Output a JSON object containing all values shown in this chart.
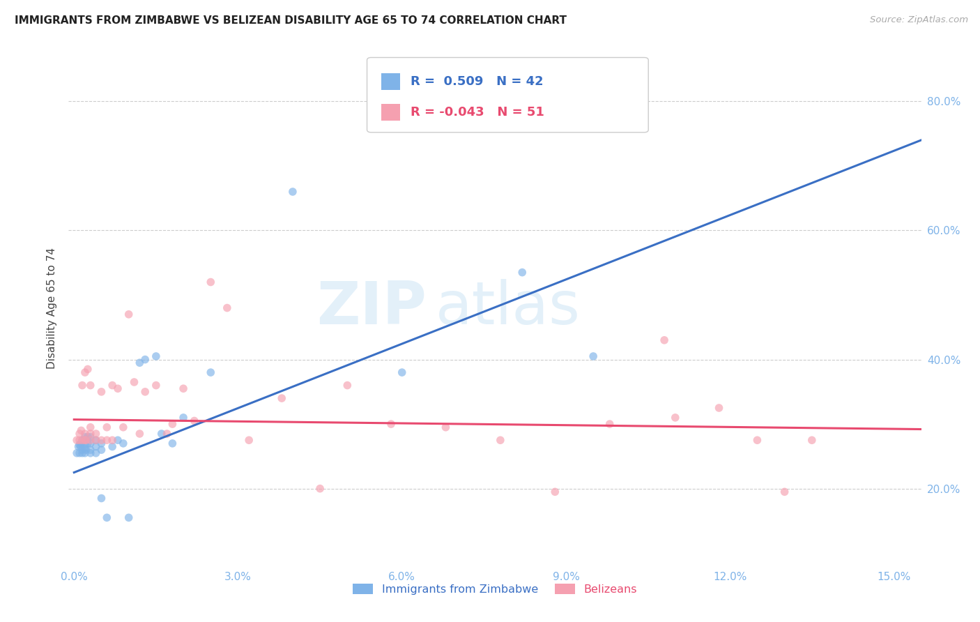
{
  "title": "IMMIGRANTS FROM ZIMBABWE VS BELIZEAN DISABILITY AGE 65 TO 74 CORRELATION CHART",
  "source": "Source: ZipAtlas.com",
  "ylabel": "Disability Age 65 to 74",
  "xlabel_ticks": [
    "0.0%",
    "3.0%",
    "6.0%",
    "9.0%",
    "12.0%",
    "15.0%"
  ],
  "xlabel_values": [
    0.0,
    0.03,
    0.06,
    0.09,
    0.12,
    0.15
  ],
  "ylabel_ticks": [
    "20.0%",
    "40.0%",
    "60.0%",
    "80.0%"
  ],
  "ylabel_values": [
    0.2,
    0.4,
    0.6,
    0.8
  ],
  "xlim": [
    -0.001,
    0.155
  ],
  "ylim": [
    0.08,
    0.88
  ],
  "blue_R": 0.509,
  "blue_N": 42,
  "pink_R": -0.043,
  "pink_N": 51,
  "blue_color": "#7fb3e8",
  "pink_color": "#f5a0b0",
  "blue_line_color": "#3a6fc4",
  "pink_line_color": "#e84a6f",
  "legend_label_blue": "Immigrants from Zimbabwe",
  "legend_label_pink": "Belizeans",
  "watermark_zip": "ZIP",
  "watermark_atlas": "atlas",
  "blue_scatter_x": [
    0.0005,
    0.0008,
    0.001,
    0.001,
    0.0012,
    0.0013,
    0.0015,
    0.0015,
    0.0015,
    0.002,
    0.002,
    0.002,
    0.002,
    0.0022,
    0.0025,
    0.0025,
    0.003,
    0.003,
    0.003,
    0.003,
    0.004,
    0.004,
    0.004,
    0.005,
    0.005,
    0.005,
    0.006,
    0.007,
    0.008,
    0.009,
    0.01,
    0.012,
    0.013,
    0.015,
    0.016,
    0.018,
    0.02,
    0.025,
    0.04,
    0.06,
    0.082,
    0.095
  ],
  "blue_scatter_y": [
    0.255,
    0.265,
    0.255,
    0.268,
    0.265,
    0.27,
    0.255,
    0.26,
    0.275,
    0.255,
    0.262,
    0.268,
    0.28,
    0.26,
    0.27,
    0.28,
    0.255,
    0.26,
    0.27,
    0.28,
    0.255,
    0.265,
    0.275,
    0.185,
    0.26,
    0.27,
    0.155,
    0.265,
    0.275,
    0.27,
    0.155,
    0.395,
    0.4,
    0.405,
    0.285,
    0.27,
    0.31,
    0.38,
    0.66,
    0.38,
    0.535,
    0.405
  ],
  "pink_scatter_x": [
    0.0005,
    0.001,
    0.001,
    0.0013,
    0.0015,
    0.0015,
    0.002,
    0.002,
    0.002,
    0.0022,
    0.0025,
    0.003,
    0.003,
    0.003,
    0.003,
    0.004,
    0.004,
    0.005,
    0.005,
    0.006,
    0.006,
    0.007,
    0.007,
    0.008,
    0.009,
    0.01,
    0.011,
    0.012,
    0.013,
    0.015,
    0.017,
    0.018,
    0.02,
    0.022,
    0.025,
    0.028,
    0.032,
    0.038,
    0.045,
    0.05,
    0.058,
    0.068,
    0.078,
    0.088,
    0.098,
    0.108,
    0.11,
    0.118,
    0.125,
    0.13,
    0.135
  ],
  "pink_scatter_y": [
    0.275,
    0.275,
    0.285,
    0.29,
    0.275,
    0.36,
    0.275,
    0.285,
    0.38,
    0.275,
    0.385,
    0.275,
    0.285,
    0.295,
    0.36,
    0.275,
    0.285,
    0.275,
    0.35,
    0.275,
    0.295,
    0.275,
    0.36,
    0.355,
    0.295,
    0.47,
    0.365,
    0.285,
    0.35,
    0.36,
    0.285,
    0.3,
    0.355,
    0.305,
    0.52,
    0.48,
    0.275,
    0.34,
    0.2,
    0.36,
    0.3,
    0.295,
    0.275,
    0.195,
    0.3,
    0.43,
    0.31,
    0.325,
    0.275,
    0.195,
    0.275
  ],
  "blue_line_x": [
    0.0,
    0.155
  ],
  "blue_line_y": [
    0.225,
    0.74
  ],
  "pink_line_x": [
    0.0,
    0.155
  ],
  "pink_line_y": [
    0.307,
    0.292
  ],
  "background_color": "#ffffff",
  "grid_color": "#cccccc",
  "title_fontsize": 11,
  "axis_tick_color": "#7fb3e8",
  "marker_size": 70,
  "marker_alpha": 0.65
}
